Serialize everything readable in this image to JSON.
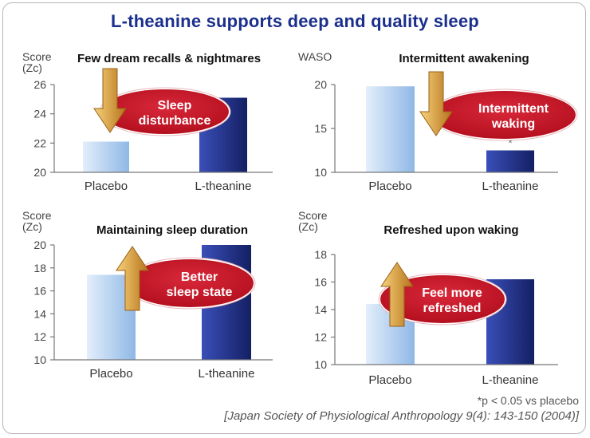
{
  "title": "L-theanine supports deep and quality sleep",
  "footnote": "*p < 0.05 vs placebo",
  "citation": "[Japan Society of Physiological Anthropology 9(4): 143-150 (2004)]",
  "colors": {
    "title": "#1b2f8c",
    "placebo_light": "#e3eefb",
    "placebo_dark": "#8fb8e6",
    "theanine_light": "#3a4fb8",
    "theanine_dark": "#141f63",
    "badge": "#b5101f",
    "arrow_light": "#f8d27a",
    "arrow_dark": "#b5731c"
  },
  "chart_data": [
    {
      "type": "bar",
      "title": "Few dream recalls & nightmares",
      "ylabel": [
        "Score",
        "(Zc)"
      ],
      "categories": [
        "Placebo",
        "L-theanine"
      ],
      "values": [
        22.1,
        25.1
      ],
      "ylim": [
        20,
        26
      ],
      "yticks": [
        20,
        22,
        24,
        26
      ],
      "annotation": [
        "Sleep",
        "disturbance"
      ],
      "arrow": "down",
      "significance": [
        "",
        ""
      ]
    },
    {
      "type": "bar",
      "title": "Intermittent awakening",
      "ylabel": [
        "WASO"
      ],
      "categories": [
        "Placebo",
        "L-theanine"
      ],
      "values": [
        19.8,
        12.5
      ],
      "ylim": [
        10,
        20
      ],
      "yticks": [
        10,
        15,
        20
      ],
      "annotation": [
        "Intermittent",
        "waking"
      ],
      "arrow": "down",
      "significance": [
        "",
        "*"
      ]
    },
    {
      "type": "bar",
      "title": "Maintaining sleep duration",
      "ylabel": [
        "Score",
        "(Zc)"
      ],
      "categories": [
        "Placebo",
        "L-theanine"
      ],
      "values": [
        17.4,
        20.0
      ],
      "ylim": [
        10,
        20
      ],
      "yticks": [
        10,
        12,
        14,
        16,
        18,
        20
      ],
      "annotation": [
        "Better",
        "sleep state"
      ],
      "arrow": "up",
      "significance": [
        "",
        ""
      ]
    },
    {
      "type": "bar",
      "title": "Refreshed upon waking",
      "ylabel": [
        "Score",
        "(Zc)"
      ],
      "categories": [
        "Placebo",
        "L-theanine"
      ],
      "values": [
        14.4,
        16.2
      ],
      "ylim": [
        10,
        18
      ],
      "yticks": [
        10,
        12,
        14,
        16,
        18
      ],
      "annotation": [
        "Feel more",
        "refreshed"
      ],
      "arrow": "up",
      "significance": [
        "",
        ""
      ]
    }
  ]
}
